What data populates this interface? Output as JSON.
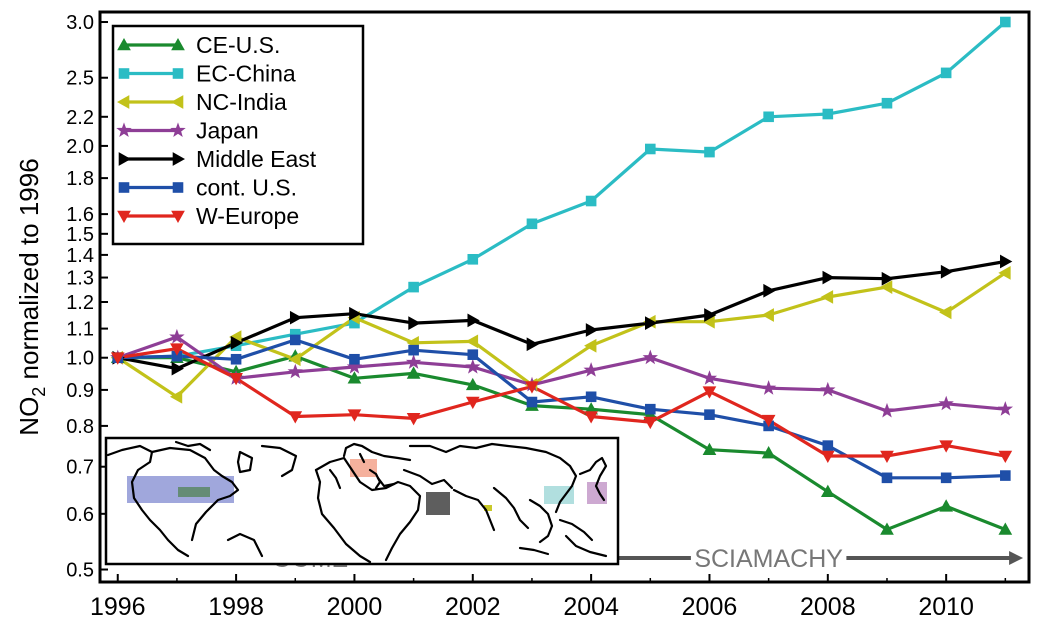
{
  "chart_data": {
    "type": "line",
    "xlabel": "",
    "ylabel": "NO₂ normalized to 1996",
    "y_scale": "log",
    "xlim": [
      1995.7,
      2011.4
    ],
    "ylim": [
      0.48,
      3.1
    ],
    "grid": false,
    "legend_placement": "top-left",
    "x_ticks": [
      "1996",
      "1998",
      "2000",
      "2002",
      "2004",
      "2006",
      "2008",
      "2010"
    ],
    "x_tick_values": [
      1996,
      1998,
      2000,
      2002,
      2004,
      2006,
      2008,
      2010
    ],
    "y_ticks": [
      "0.5",
      "0.6",
      "0.7",
      "0.8",
      "0.9",
      "1.0",
      "1.1",
      "1.2",
      "1.3",
      "1.4",
      "1.5",
      "1.6",
      "1.8",
      "2.0",
      "2.2",
      "2.5",
      "3.0"
    ],
    "y_tick_values": [
      0.5,
      0.6,
      0.7,
      0.8,
      0.9,
      1.0,
      1.1,
      1.2,
      1.3,
      1.4,
      1.5,
      1.6,
      1.8,
      2.0,
      2.2,
      2.5,
      3.0
    ],
    "x": [
      1996,
      1997,
      1998,
      1999,
      2000,
      2001,
      2002,
      2003,
      2004,
      2005,
      2006,
      2007,
      2008,
      2009,
      2010,
      2011
    ],
    "series": [
      {
        "name": "CE-U.S.",
        "color": "#1a8a2e",
        "marker": "triangle-up",
        "values": [
          1.0,
          1.0,
          0.955,
          1.005,
          0.935,
          0.95,
          0.915,
          0.855,
          0.845,
          0.83,
          0.74,
          0.732,
          0.645,
          0.57,
          0.615,
          0.57
        ]
      },
      {
        "name": "EC-China",
        "color": "#2bbcc4",
        "marker": "square",
        "values": [
          1.0,
          1.005,
          1.04,
          1.08,
          1.12,
          1.26,
          1.38,
          1.55,
          1.67,
          1.98,
          1.96,
          2.2,
          2.22,
          2.3,
          2.54,
          3.0
        ]
      },
      {
        "name": "NC-India",
        "color": "#c2c21a",
        "marker": "triangle-left",
        "values": [
          1.0,
          0.88,
          1.07,
          0.995,
          1.14,
          1.05,
          1.055,
          0.915,
          1.04,
          1.125,
          1.125,
          1.15,
          1.22,
          1.26,
          1.16,
          1.32
        ]
      },
      {
        "name": "Japan",
        "color": "#8e3e96",
        "marker": "star",
        "values": [
          1.0,
          1.07,
          0.935,
          0.955,
          0.97,
          0.985,
          0.97,
          0.915,
          0.96,
          1.0,
          0.935,
          0.905,
          0.9,
          0.84,
          0.86,
          0.845
        ]
      },
      {
        "name": "Middle East",
        "color": "#000000",
        "marker": "triangle-right",
        "values": [
          1.0,
          0.965,
          1.05,
          1.14,
          1.155,
          1.12,
          1.13,
          1.045,
          1.095,
          1.12,
          1.15,
          1.245,
          1.3,
          1.295,
          1.325,
          1.37
        ]
      },
      {
        "name": "cont. U.S.",
        "color": "#1f4fa8",
        "marker": "square",
        "values": [
          1.0,
          1.005,
          0.995,
          1.06,
          0.995,
          1.025,
          1.01,
          0.865,
          0.88,
          0.845,
          0.83,
          0.8,
          0.75,
          0.675,
          0.675,
          0.68
        ]
      },
      {
        "name": "W-Europe",
        "color": "#e0261e",
        "marker": "triangle-down",
        "values": [
          1.0,
          1.03,
          0.935,
          0.825,
          0.83,
          0.82,
          0.865,
          0.91,
          0.825,
          0.81,
          0.895,
          0.815,
          0.725,
          0.725,
          0.75,
          0.725
        ]
      }
    ],
    "instruments": [
      {
        "label": "GOME",
        "x_start": 1995.8,
        "x_end": 2002.7
      },
      {
        "label": "SCIAMACHY",
        "x_start": 2002.7,
        "x_end": 2011.3
      }
    ],
    "inset_map": {
      "regions": [
        {
          "name": "cont. U.S.",
          "color": "#8f98d6"
        },
        {
          "name": "CE-U.S.",
          "color": "#5e8a6a"
        },
        {
          "name": "W-Europe",
          "color": "#f3a38c"
        },
        {
          "name": "Middle East",
          "color": "#555555"
        },
        {
          "name": "NC-India",
          "color": "#c9c92a"
        },
        {
          "name": "EC-China",
          "color": "#a8dcdc"
        },
        {
          "name": "Japan",
          "color": "#c8a0cc"
        }
      ]
    }
  }
}
